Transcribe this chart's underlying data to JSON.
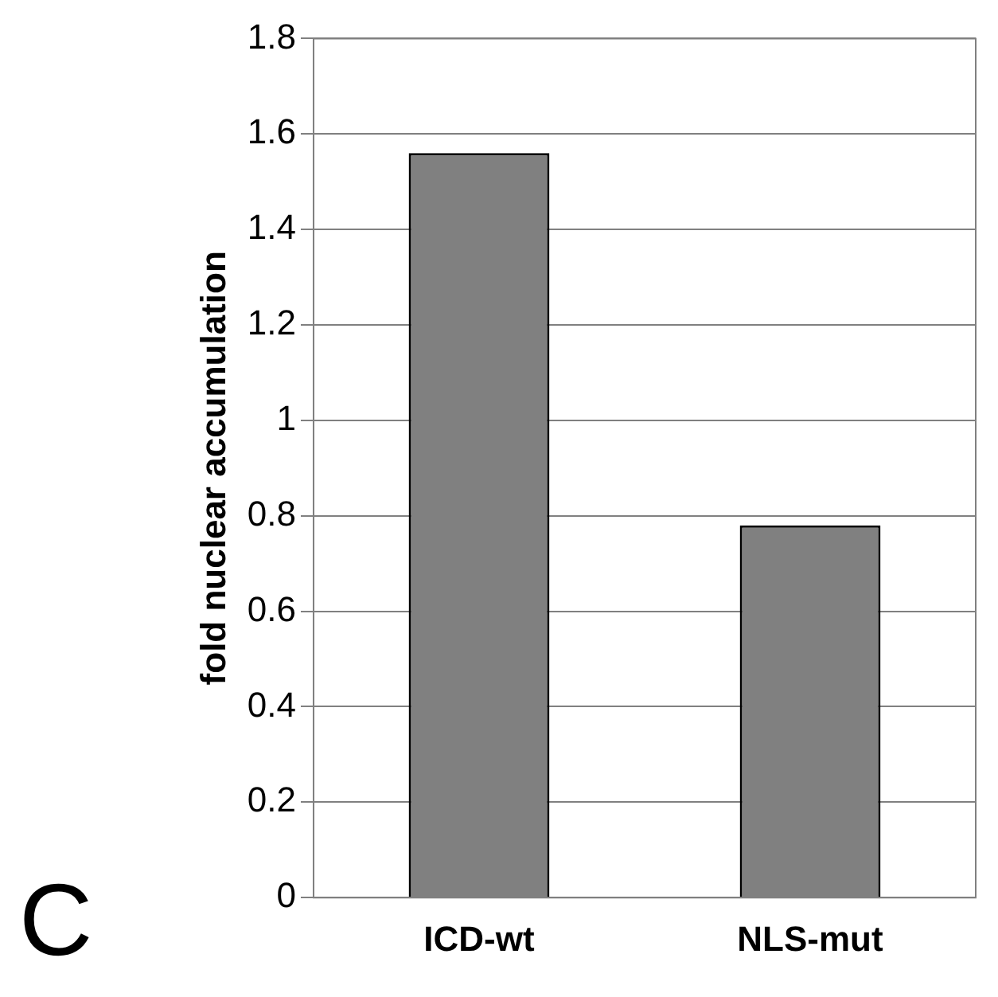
{
  "chart_data": {
    "type": "bar",
    "ylabel": "fold nuclear accumulation",
    "categories": [
      "ICD-wt",
      "NLS-mut"
    ],
    "values": [
      1.56,
      0.78
    ],
    "color": "#808080",
    "ylim": [
      0,
      1.8
    ],
    "yticks": [
      0,
      0.2,
      0.4,
      0.6,
      0.8,
      1,
      1.2,
      1.4,
      1.6,
      1.8
    ],
    "grid": "y",
    "legend": false,
    "annotations": [
      "C"
    ]
  }
}
